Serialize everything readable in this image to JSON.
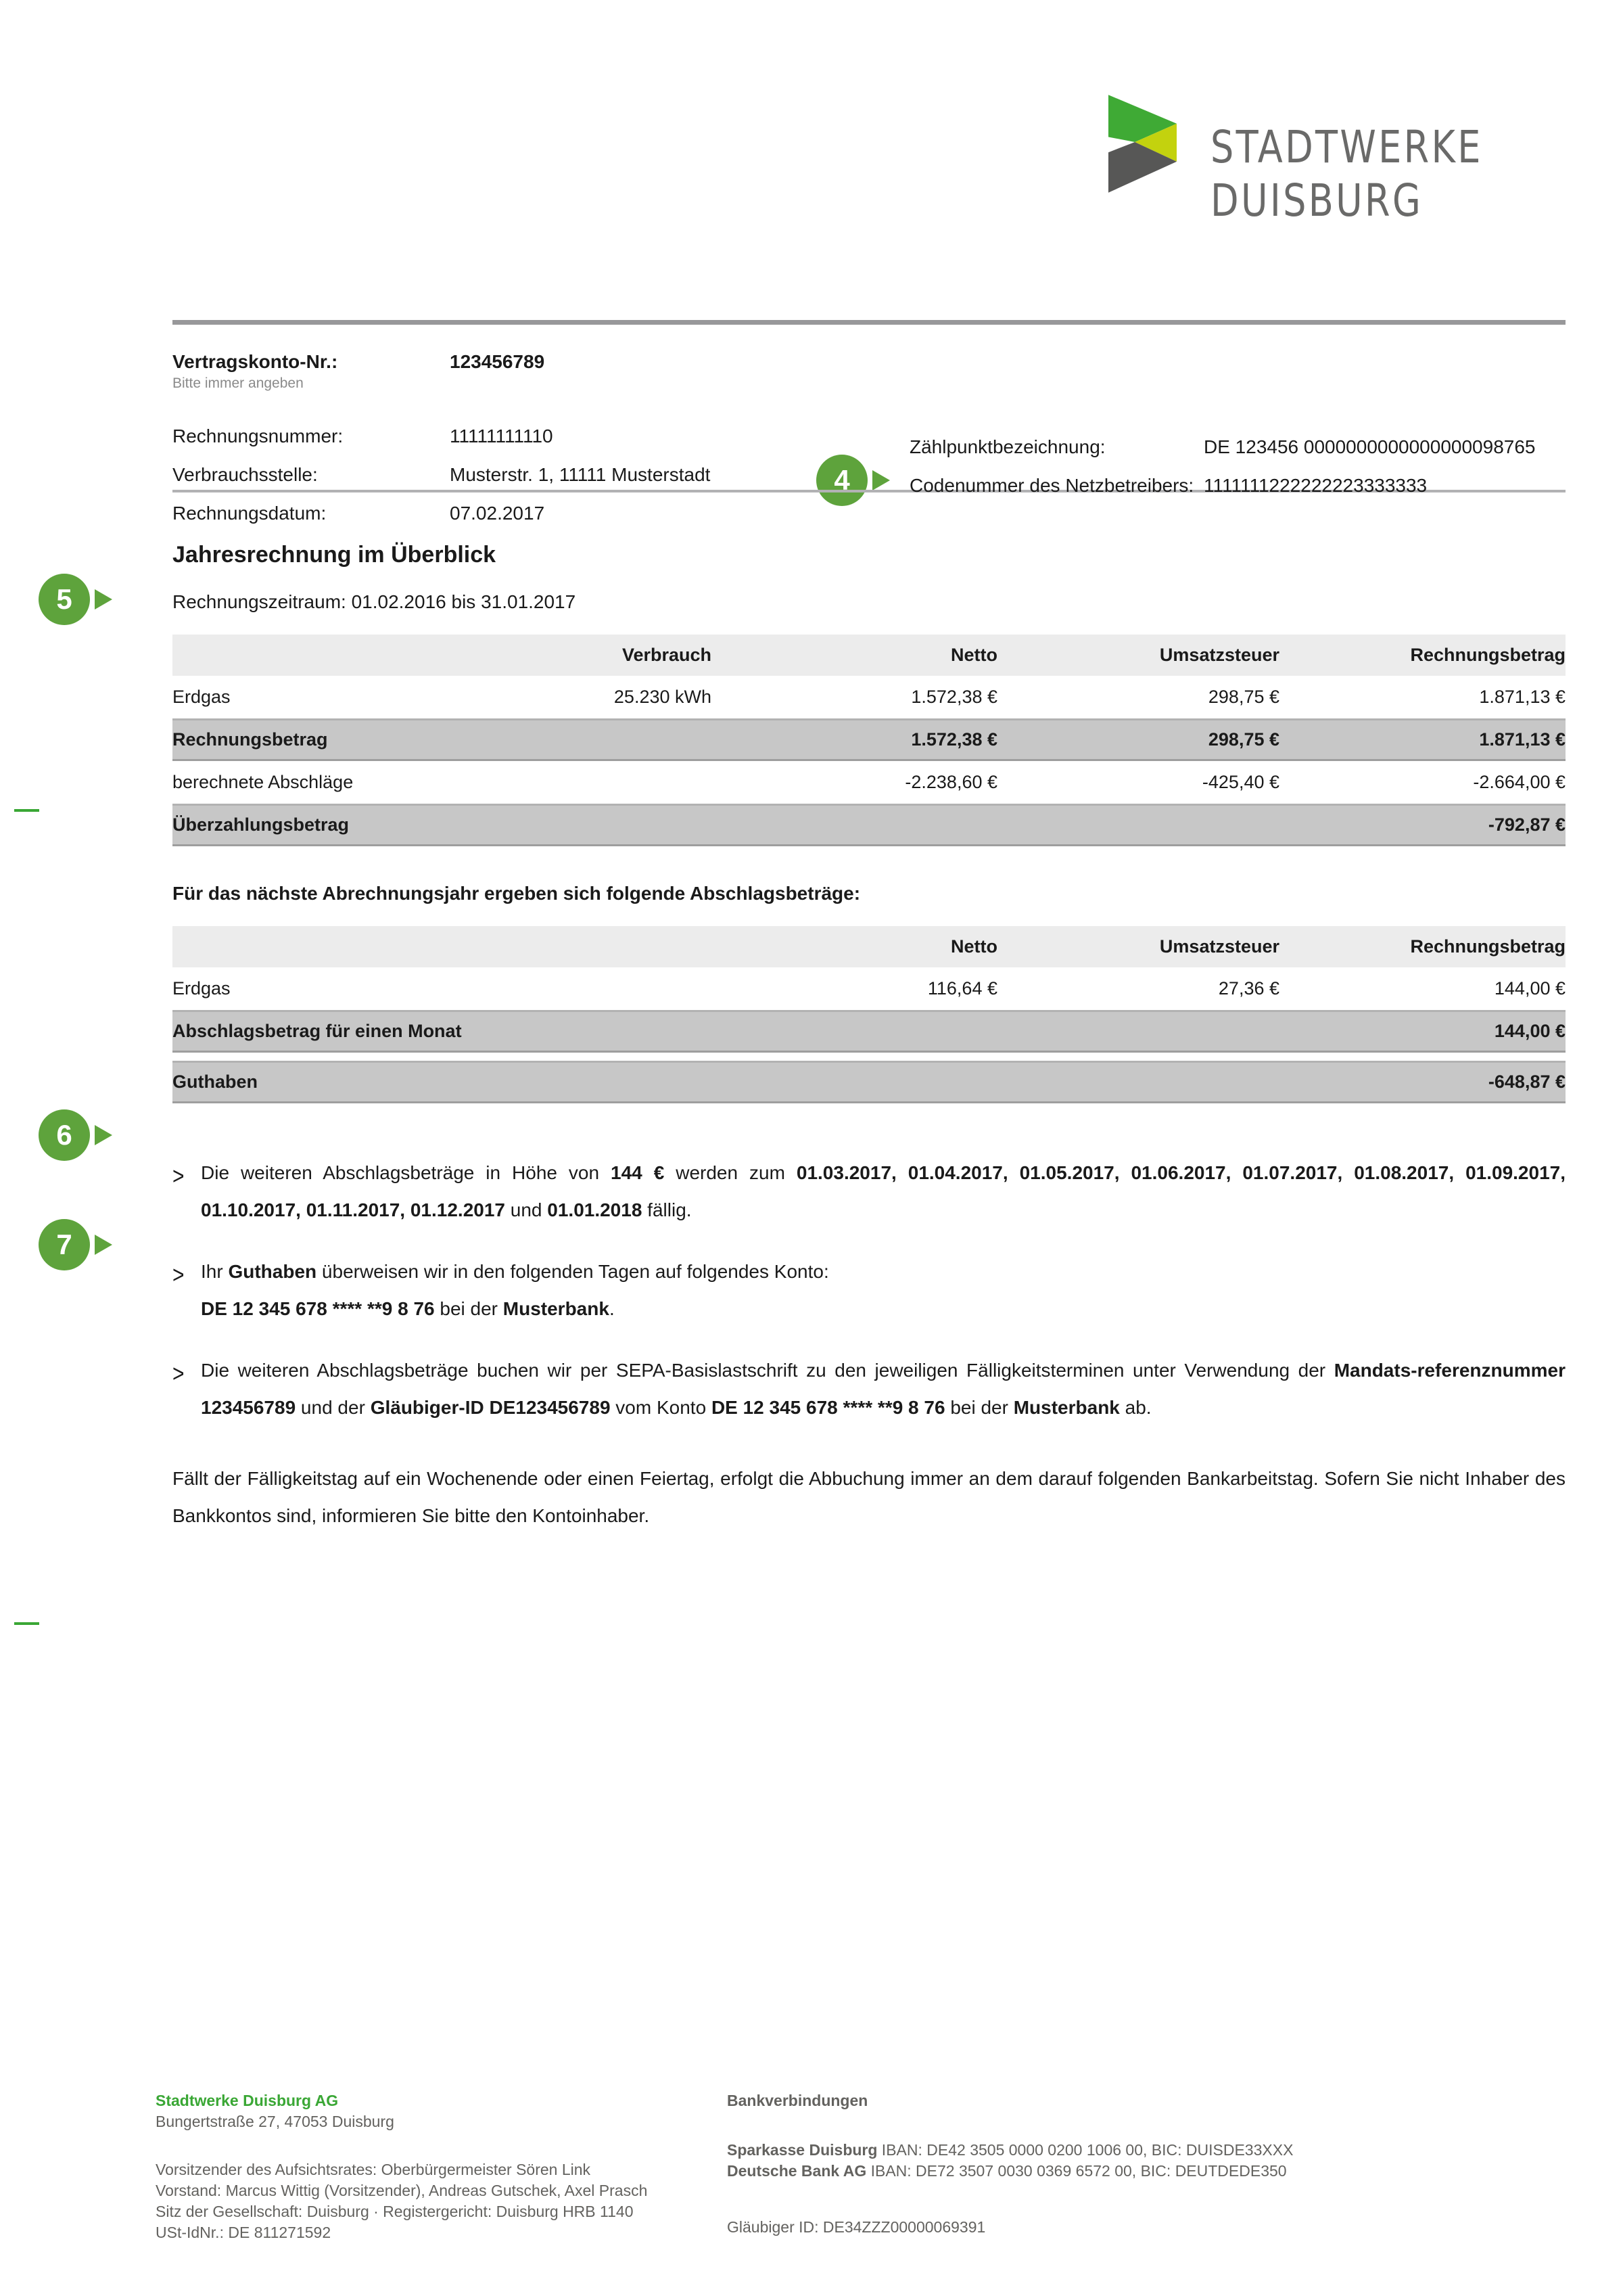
{
  "brand": {
    "logo_line1": "STADTWERKE",
    "logo_line2": "DUISBURG",
    "green": "#3faa35",
    "yellow": "#c3d20e",
    "dark_gray": "#575756",
    "marker_green": "#5ea33c",
    "logo_text_gray": "#6a6a69"
  },
  "markers": {
    "m4": "4",
    "m5": "5",
    "m6": "6",
    "m7": "7"
  },
  "account": {
    "vertragskonto_label": "Vertragskonto-Nr.:",
    "vertragskonto_value": "123456789",
    "vertragskonto_note": "Bitte immer angeben",
    "rechnungsnummer_label": "Rechnungsnummer:",
    "rechnungsnummer_value": "11111111110",
    "verbrauchsstelle_label": "Verbrauchsstelle:",
    "verbrauchsstelle_value": "Musterstr. 1, 11111 Musterstadt",
    "rechnungsdatum_label": "Rechnungsdatum:",
    "rechnungsdatum_value": "07.02.2017",
    "zaehlpunkt_label": "Zählpunktbezeichnung:",
    "zaehlpunkt_value": "DE 123456 0000000000000000098765",
    "codenummer_label": "Codenummer des Netzbetreibers:",
    "codenummer_value": "1111111222222223333333"
  },
  "overview": {
    "title": "Jahresrechnung im Überblick",
    "period": "Rechnungszeitraum: 01.02.2016 bis 31.01.2017",
    "table1": {
      "headers": {
        "verbrauch": "Verbrauch",
        "netto": "Netto",
        "ust": "Umsatzsteuer",
        "betrag": "Rechnungsbetrag"
      },
      "rows": [
        {
          "label": "Erdgas",
          "verbrauch": "25.230 kWh",
          "netto": "1.572,38 €",
          "ust": "298,75 €",
          "betrag": "1.871,13 €"
        },
        {
          "label": "Rechnungsbetrag",
          "verbrauch": "",
          "netto": "1.572,38 €",
          "ust": "298,75 €",
          "betrag": "1.871,13 €"
        },
        {
          "label": "berechnete Abschläge",
          "verbrauch": "",
          "netto": "-2.238,60 €",
          "ust": "-425,40 €",
          "betrag": "-2.664,00 €"
        },
        {
          "label": "Überzahlungsbetrag",
          "verbrauch": "",
          "netto": "",
          "ust": "",
          "betrag": "-792,87 €"
        }
      ]
    },
    "next_intro": "Für das nächste Abrechnungsjahr ergeben sich folgende Abschlagsbeträge:",
    "table2": {
      "headers": {
        "netto": "Netto",
        "ust": "Umsatzsteuer",
        "betrag": "Rechnungsbetrag"
      },
      "rows": [
        {
          "label": "Erdgas",
          "netto": "116,64 €",
          "ust": "27,36 €",
          "betrag": "144,00 €"
        },
        {
          "label": "Abschlagsbetrag für einen Monat",
          "netto": "",
          "ust": "",
          "betrag": "144,00 €"
        },
        {
          "label": "Guthaben",
          "netto": "",
          "ust": "",
          "betrag": "-648,87 €"
        }
      ]
    }
  },
  "bullet_char": ">",
  "paragraphs": {
    "p1": {
      "segments": [
        {
          "t": "Die weiteren Abschlagsbeträge in Höhe von "
        },
        {
          "t": "144 €",
          "b": true
        },
        {
          "t": " werden zum "
        },
        {
          "t": "01.03.2017, 01.04.2017, 01.05.2017, 01.06.2017, 01.07.2017, 01.08.2017, 01.09.2017, 01.10.2017, 01.11.2017, 01.12.2017",
          "b": true
        },
        {
          "t": " und "
        },
        {
          "t": "01.01.2018",
          "b": true
        },
        {
          "t": " fällig."
        }
      ]
    },
    "p2": {
      "segments": [
        {
          "t": "Ihr "
        },
        {
          "t": "Guthaben",
          "b": true
        },
        {
          "t": " überweisen wir in den folgenden Tagen auf folgendes Konto:"
        },
        {
          "br": true
        },
        {
          "t": "DE 12 345 678 **** **9 8 76",
          "b": true
        },
        {
          "t": " bei der "
        },
        {
          "t": "Musterbank",
          "b": true
        },
        {
          "t": "."
        }
      ]
    },
    "p3": {
      "segments": [
        {
          "t": "Die weiteren Abschlagsbeträge buchen wir per SEPA-Basislastschrift zu den jeweiligen Fälligkeitsterminen unter Verwendung der "
        },
        {
          "t": "Mandats-referenznummer 123456789",
          "b": true
        },
        {
          "t": " und der "
        },
        {
          "t": "Gläubiger-ID DE123456789",
          "b": true
        },
        {
          "t": " vom Konto "
        },
        {
          "t": "DE 12 345 678 **** **9 8 76",
          "b": true
        },
        {
          "t": " bei der "
        },
        {
          "t": "Musterbank",
          "b": true
        },
        {
          "t": " ab."
        }
      ]
    },
    "p4": {
      "text": "Fällt der Fälligkeitstag auf ein Wochenende oder einen Feiertag, erfolgt die Abbuchung immer an dem darauf folgenden Bankarbeitstag. Sofern Sie nicht Inhaber des Bankkontos sind, informieren Sie bitte den Kontoinhaber."
    }
  },
  "footer": {
    "left": {
      "name": "Stadtwerke Duisburg AG",
      "address": "Bungertstraße 27, 47053 Duisburg",
      "lines": [
        "Vorsitzender des Aufsichtsrates: Oberbürgermeister Sören Link",
        "Vorstand: Marcus Wittig (Vorsitzender), Andreas Gutschek, Axel Prasch",
        "Sitz der Gesellschaft: Duisburg · Registergericht: Duisburg HRB 1140",
        "USt-IdNr.: DE 811271592"
      ]
    },
    "right": {
      "heading": "Bankverbindungen",
      "bank1": {
        "segments": [
          {
            "t": "Sparkasse Duisburg",
            "b": true
          },
          {
            "t": " IBAN: DE42 3505 0000 0200 1006 00, BIC: DUISDE33XXX"
          }
        ]
      },
      "bank2": {
        "segments": [
          {
            "t": "Deutsche Bank AG",
            "b": true
          },
          {
            "t": " IBAN: DE72 3507 0030 0369 6572 00, BIC: DEUTDEDE350"
          }
        ]
      },
      "glaeubiger": "Gläubiger ID: DE34ZZZ00000069391"
    }
  }
}
